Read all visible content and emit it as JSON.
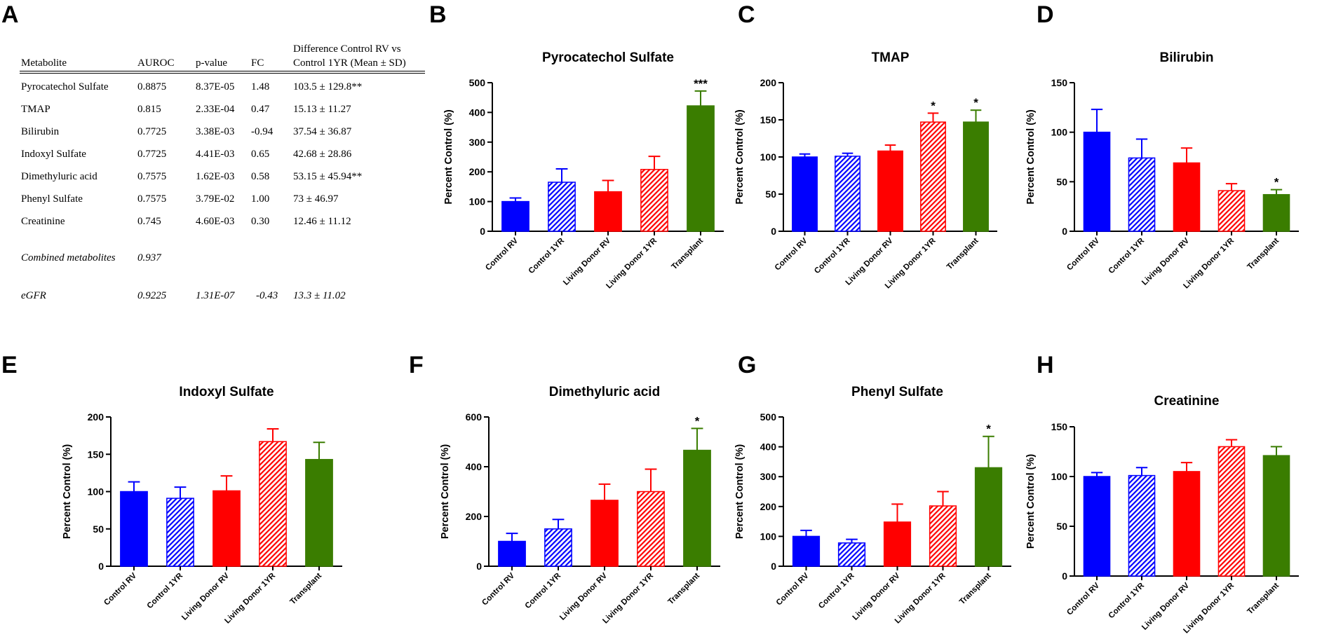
{
  "panel_letters": [
    "A",
    "B",
    "C",
    "D",
    "E",
    "F",
    "G",
    "H"
  ],
  "table": {
    "headers": {
      "metabolite": "Metabolite",
      "auroc": "AUROC",
      "pvalue": "p-value",
      "fc": "FC",
      "diff_line1": "Difference Control RV vs",
      "diff_line2": "Control 1YR (Mean ± SD)"
    },
    "rows": [
      {
        "metabolite": "Pyrocatechol Sulfate",
        "auroc": "0.8875",
        "pvalue": "8.37E-05",
        "fc": "1.48",
        "diff": "103.5 ± 129.8**"
      },
      {
        "metabolite": "TMAP",
        "auroc": "0.815",
        "pvalue": "2.33E-04",
        "fc": "0.47",
        "diff": "15.13 ± 11.27"
      },
      {
        "metabolite": "Bilirubin",
        "auroc": "0.7725",
        "pvalue": "3.38E-03",
        "fc": "-0.94",
        "diff": "37.54 ± 36.87"
      },
      {
        "metabolite": "Indoxyl Sulfate",
        "auroc": "0.7725",
        "pvalue": "4.41E-03",
        "fc": "0.65",
        "diff": "42.68 ± 28.86"
      },
      {
        "metabolite": "Dimethyluric acid",
        "auroc": "0.7575",
        "pvalue": "1.62E-03",
        "fc": "0.58",
        "diff": "53.15 ± 45.94**"
      },
      {
        "metabolite": "Phenyl Sulfate",
        "auroc": "0.7575",
        "pvalue": "3.79E-02",
        "fc": "1.00",
        "diff": "73 ± 46.97"
      },
      {
        "metabolite": "Creatinine",
        "auroc": "0.745",
        "pvalue": "4.60E-03",
        "fc": "0.30",
        "diff": "12.46 ± 11.12"
      }
    ],
    "combined": {
      "label": "Combined metabolites",
      "auroc": "0.937"
    },
    "egfr": {
      "label": "eGFR",
      "auroc": "0.9225",
      "pvalue": "1.31E-07",
      "fc": "-0.43",
      "diff": "13.3 ± 11.02"
    }
  },
  "colors": {
    "control": "#0000ff",
    "living_donor": "#ff0000",
    "transplant": "#3a7d00"
  },
  "chart_data": [
    {
      "panel": "B",
      "type": "bar",
      "title": "Pyrocatechol Sulfate",
      "ylabel": "Percent Control (%)",
      "ylim": [
        0,
        500
      ],
      "yticks": [
        0,
        100,
        200,
        300,
        400,
        500
      ],
      "categories": [
        "Control RV",
        "Control 1YR",
        "Living Donor RV",
        "Living Donor 1YR",
        "Transplant"
      ],
      "values": [
        100,
        165,
        133,
        208,
        422
      ],
      "errors": [
        12,
        45,
        38,
        44,
        50
      ],
      "annotations": [
        "",
        "",
        "",
        "",
        "***"
      ]
    },
    {
      "panel": "C",
      "type": "bar",
      "title": "TMAP",
      "ylabel": "Percent Control (%)",
      "ylim": [
        0,
        200
      ],
      "yticks": [
        0,
        50,
        100,
        150,
        200
      ],
      "categories": [
        "Control RV",
        "Control 1YR",
        "Living Donor RV",
        "Living Donor 1YR",
        "Transplant"
      ],
      "values": [
        100,
        101,
        108,
        147,
        147
      ],
      "errors": [
        4,
        4,
        8,
        12,
        16
      ],
      "annotations": [
        "",
        "",
        "",
        "*",
        "*"
      ]
    },
    {
      "panel": "D",
      "type": "bar",
      "title": "Bilirubin",
      "ylabel": "Percent Control (%)",
      "ylim": [
        0,
        150
      ],
      "yticks": [
        0,
        50,
        100,
        150
      ],
      "categories": [
        "Control RV",
        "Control 1YR",
        "Living Donor RV",
        "Living Donor 1YR",
        "Transplant"
      ],
      "values": [
        100,
        74,
        69,
        41,
        37
      ],
      "errors": [
        23,
        19,
        15,
        7,
        5
      ],
      "annotations": [
        "",
        "",
        "",
        "",
        "*"
      ]
    },
    {
      "panel": "E",
      "type": "bar",
      "title": "Indoxyl Sulfate",
      "ylabel": "Percent Control (%)",
      "ylim": [
        0,
        200
      ],
      "yticks": [
        0,
        50,
        100,
        150,
        200
      ],
      "categories": [
        "Control RV",
        "Control 1YR",
        "Living Donor RV",
        "Living Donor 1YR",
        "Transplant"
      ],
      "values": [
        100,
        91,
        101,
        167,
        143
      ],
      "errors": [
        13,
        15,
        20,
        17,
        23
      ],
      "annotations": [
        "",
        "",
        "",
        "",
        ""
      ]
    },
    {
      "panel": "F",
      "type": "bar",
      "title": "Dimethyluric acid",
      "ylabel": "Percent Control (%)",
      "ylim": [
        0,
        600
      ],
      "yticks": [
        0,
        200,
        400,
        600
      ],
      "categories": [
        "Control RV",
        "Control 1YR",
        "Living Donor RV",
        "Living Donor 1YR",
        "Transplant"
      ],
      "values": [
        100,
        150,
        265,
        300,
        466
      ],
      "errors": [
        32,
        38,
        65,
        90,
        88
      ],
      "annotations": [
        "",
        "",
        "",
        "",
        "*"
      ]
    },
    {
      "panel": "G",
      "type": "bar",
      "title": "Phenyl  Sulfate",
      "ylabel": "Percent Control (%)",
      "ylim": [
        0,
        500
      ],
      "yticks": [
        0,
        100,
        200,
        300,
        400,
        500
      ],
      "categories": [
        "Control RV",
        "Control 1YR",
        "Living Donor RV",
        "Living Donor 1YR",
        "Transplant"
      ],
      "values": [
        100,
        78,
        148,
        202,
        330
      ],
      "errors": [
        20,
        12,
        60,
        48,
        105
      ],
      "annotations": [
        "",
        "",
        "",
        "",
        "*"
      ]
    },
    {
      "panel": "H",
      "type": "bar",
      "title": "Creatinine",
      "ylabel": "Percent Control (%)",
      "ylim": [
        0,
        150
      ],
      "yticks": [
        0,
        50,
        100,
        150
      ],
      "categories": [
        "Control RV",
        "Control 1YR",
        "Living Donor RV",
        "Living Donor 1YR",
        "Transplant"
      ],
      "values": [
        100,
        101,
        105,
        130,
        121
      ],
      "errors": [
        4,
        8,
        9,
        7,
        9
      ],
      "annotations": [
        "",
        "",
        "",
        "",
        ""
      ]
    }
  ]
}
